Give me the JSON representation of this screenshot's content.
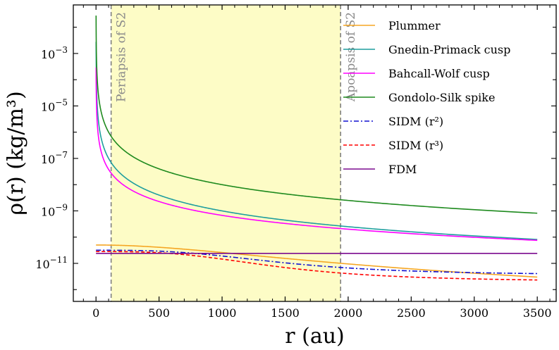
{
  "chart_data": {
    "type": "line",
    "xlabel": "r (au)",
    "ylabel": "ρ(r) (kg/m³)",
    "y_scale": "log",
    "xlim": [
      -180,
      3650
    ],
    "ylim_log10": [
      -12.45,
      -1.15
    ],
    "x_ticks": [
      0,
      500,
      1000,
      1500,
      2000,
      2500,
      3000,
      3500
    ],
    "x_tick_labels": [
      "0",
      "500",
      "1000",
      "1500",
      "2000",
      "2500",
      "3000",
      "3500"
    ],
    "y_ticks_log10": [
      -3,
      -5,
      -7,
      -9,
      -11
    ],
    "y_tick_labels": [
      {
        "base": "10",
        "exp": "−3"
      },
      {
        "base": "10",
        "exp": "−5"
      },
      {
        "base": "10",
        "exp": "−7"
      },
      {
        "base": "10",
        "exp": "−9"
      },
      {
        "base": "10",
        "exp": "−11"
      }
    ],
    "shaded_region": {
      "x0": 120,
      "x1": 1940,
      "color": "#fdfcc6"
    },
    "vlines": [
      {
        "x": 120,
        "label": "Periapsis of S2"
      },
      {
        "x": 1940,
        "label": "Apoapsis of S2"
      }
    ],
    "legend_position": "top-right",
    "series": [
      {
        "name": "Plummer",
        "color": "#f5a623",
        "dash": "solid",
        "model": "plummer",
        "params": {
          "a": -10.3,
          "m": 1200,
          "n": 2.5
        }
      },
      {
        "name": "Gnedin-Primack cusp",
        "color": "#1f9e9e",
        "dash": "solid",
        "model": "power",
        "params": {
          "A": 0.001,
          "p": 2.0
        }
      },
      {
        "name": "Bahcall-Wolf cusp",
        "color": "#ff00ff",
        "dash": "solid",
        "model": "power",
        "params": {
          "A": 0.00012,
          "p": 1.75
        }
      },
      {
        "name": "Gondolo-Silk spike",
        "color": "#1e8a1e",
        "dash": "solid",
        "model": "power",
        "params": {
          "A": 0.01,
          "p": 2.0
        }
      },
      {
        "name": "SIDM (r²)",
        "color": "#1010d0",
        "dash": "dashdot",
        "model": "core",
        "params": {
          "a": -10.5,
          "b": -10.98,
          "rc": 1500,
          "n": 3
        }
      },
      {
        "name": "SIDM (r³)",
        "color": "#ff0000",
        "dash": "dashed",
        "model": "core",
        "params": {
          "a": -10.55,
          "b": -11.13,
          "rc": 1450,
          "n": 3
        }
      },
      {
        "name": "FDM",
        "color": "#7b0b8f",
        "dash": "solid",
        "model": "flat",
        "params": {
          "v": -10.62
        }
      }
    ]
  }
}
